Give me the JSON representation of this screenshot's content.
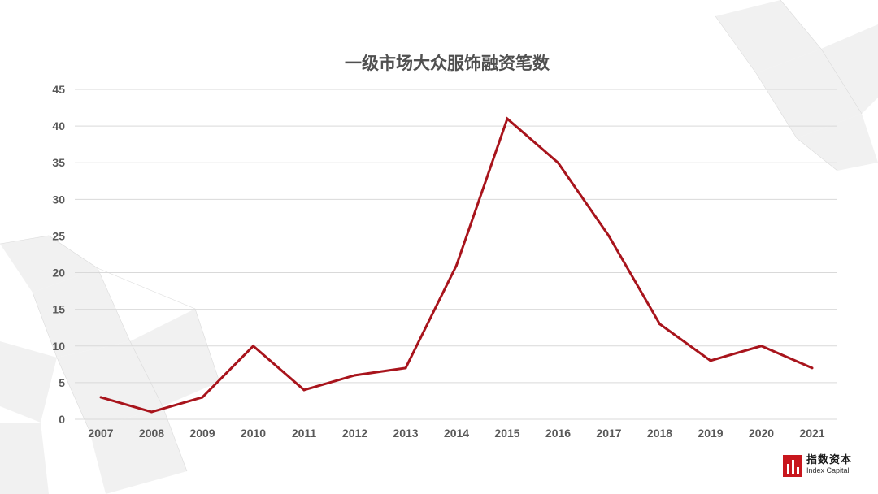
{
  "chart_data": {
    "type": "line",
    "title": "一级市场大众服饰融资笔数",
    "x": [
      "2007",
      "2008",
      "2009",
      "2010",
      "2011",
      "2012",
      "2013",
      "2014",
      "2015",
      "2016",
      "2017",
      "2018",
      "2019",
      "2020",
      "2021"
    ],
    "series": [
      {
        "values": [
          3,
          1,
          3,
          10,
          4,
          6,
          7,
          21,
          41,
          35,
          25,
          13,
          8,
          10,
          7
        ]
      }
    ],
    "ylim": [
      0,
      45
    ],
    "yticks": [
      0,
      5,
      10,
      15,
      20,
      25,
      30,
      35,
      40,
      45
    ],
    "grid": true,
    "legend": "none",
    "line_color": "#a8141c",
    "grid_color": "#d9d9d9"
  },
  "logo": {
    "cn": "指数资本",
    "en": "Index Capital",
    "color": "#c8161d"
  }
}
